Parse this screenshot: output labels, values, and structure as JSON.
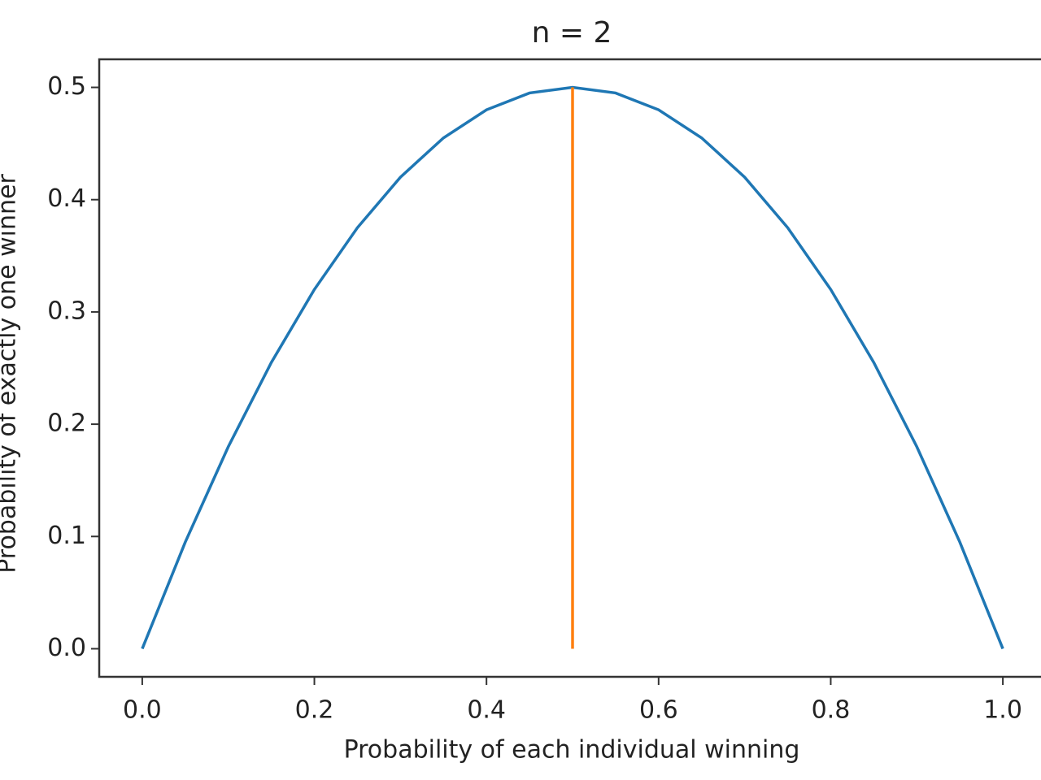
{
  "chart_data": {
    "type": "line",
    "title": "n = 2",
    "xlabel": "Probability of each individual winning",
    "ylabel": "Probability of exactly one winner",
    "series": [
      {
        "color": "#1f77b4",
        "x": [
          0,
          0.05,
          0.1,
          0.15,
          0.2,
          0.25,
          0.3,
          0.35,
          0.4,
          0.45,
          0.5,
          0.55,
          0.6,
          0.65,
          0.7,
          0.75,
          0.8,
          0.85,
          0.9,
          0.95,
          1
        ],
        "values": [
          0,
          0.095,
          0.18,
          0.255,
          0.32,
          0.375,
          0.42,
          0.455,
          0.48,
          0.495,
          0.5,
          0.495,
          0.48,
          0.455,
          0.42,
          0.375,
          0.32,
          0.255,
          0.18,
          0.095,
          0
        ]
      },
      {
        "color": "#ff7f0e",
        "x": [
          0.5,
          0.5
        ],
        "values": [
          0,
          0.5
        ]
      }
    ],
    "xlim": [
      -0.05,
      1.05
    ],
    "ylim": [
      -0.025,
      0.525
    ],
    "xticks": [
      {
        "value": 0,
        "label": "0.0"
      },
      0.2,
      0.4,
      0.6,
      0.8,
      {
        "value": 1,
        "label": "1.0"
      }
    ],
    "yticks": [
      {
        "value": 0,
        "label": "0.0"
      },
      0.1,
      0.2,
      0.3,
      0.4,
      0.5
    ]
  }
}
